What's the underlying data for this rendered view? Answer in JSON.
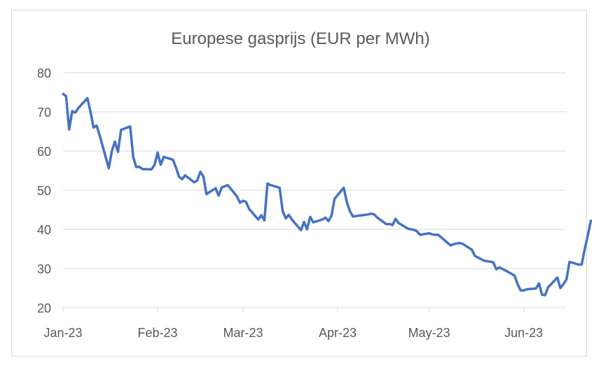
{
  "chart_data": {
    "type": "line",
    "title": "Europese gasprijs (EUR per MWh)",
    "xlabel": "",
    "ylabel": "",
    "ylim": [
      20,
      80
    ],
    "yticks": [
      20,
      30,
      40,
      50,
      60,
      70,
      80
    ],
    "grid": "horizontal",
    "legend": "none",
    "xticks": [
      {
        "label": "Jan-23",
        "date": "2023-01-01"
      },
      {
        "label": "Feb-23",
        "date": "2023-02-01"
      },
      {
        "label": "Mar-23",
        "date": "2023-03-01"
      },
      {
        "label": "Apr-23",
        "date": "2023-04-01"
      },
      {
        "label": "May-23",
        "date": "2023-05-01"
      },
      {
        "label": "Jun-23",
        "date": "2023-06-01"
      }
    ],
    "xlim": [
      "2023-01-01",
      "2023-06-17"
    ],
    "line_color": "#4472C4",
    "grid_color": "#d9d9d9",
    "series": [
      {
        "points": [
          [
            "2023-01-01",
            74.6
          ],
          [
            "2023-01-02",
            74.0
          ],
          [
            "2023-01-03",
            65.5
          ],
          [
            "2023-01-04",
            70.2
          ],
          [
            "2023-01-05",
            69.8
          ],
          [
            "2023-01-06",
            71.0
          ],
          [
            "2023-01-09",
            73.5
          ],
          [
            "2023-01-10",
            70.0
          ],
          [
            "2023-01-11",
            66.0
          ],
          [
            "2023-01-12",
            66.5
          ],
          [
            "2023-01-13",
            64.0
          ],
          [
            "2023-01-16",
            55.6
          ],
          [
            "2023-01-17",
            60.0
          ],
          [
            "2023-01-18",
            62.4
          ],
          [
            "2023-01-19",
            59.8
          ],
          [
            "2023-01-20",
            65.4
          ],
          [
            "2023-01-23",
            66.3
          ],
          [
            "2023-01-24",
            58.5
          ],
          [
            "2023-01-25",
            55.9
          ],
          [
            "2023-01-26",
            56.0
          ],
          [
            "2023-01-27",
            55.4
          ],
          [
            "2023-01-30",
            55.3
          ],
          [
            "2023-01-31",
            56.5
          ],
          [
            "2023-02-01",
            59.6
          ],
          [
            "2023-02-02",
            56.5
          ],
          [
            "2023-02-03",
            58.5
          ],
          [
            "2023-02-06",
            57.8
          ],
          [
            "2023-02-07",
            55.8
          ],
          [
            "2023-02-08",
            53.5
          ],
          [
            "2023-02-09",
            52.8
          ],
          [
            "2023-02-10",
            53.8
          ],
          [
            "2023-02-13",
            52.0
          ],
          [
            "2023-02-14",
            52.5
          ],
          [
            "2023-02-15",
            54.7
          ],
          [
            "2023-02-16",
            53.5
          ],
          [
            "2023-02-17",
            49.0
          ],
          [
            "2023-02-20",
            50.5
          ],
          [
            "2023-02-21",
            48.6
          ],
          [
            "2023-02-22",
            50.7
          ],
          [
            "2023-02-23",
            51.0
          ],
          [
            "2023-02-24",
            51.3
          ],
          [
            "2023-02-27",
            48.4
          ],
          [
            "2023-02-28",
            46.8
          ],
          [
            "2023-03-01",
            47.3
          ],
          [
            "2023-03-02",
            47.0
          ],
          [
            "2023-03-03",
            45.2
          ],
          [
            "2023-03-06",
            42.5
          ],
          [
            "2023-03-07",
            43.6
          ],
          [
            "2023-03-08",
            42.3
          ],
          [
            "2023-03-09",
            51.7
          ],
          [
            "2023-03-10",
            51.3
          ],
          [
            "2023-03-13",
            50.6
          ],
          [
            "2023-03-14",
            44.6
          ],
          [
            "2023-03-15",
            42.8
          ],
          [
            "2023-03-16",
            43.7
          ],
          [
            "2023-03-17",
            42.5
          ],
          [
            "2023-03-20",
            39.8
          ],
          [
            "2023-03-21",
            41.9
          ],
          [
            "2023-03-22",
            40.0
          ],
          [
            "2023-03-23",
            43.2
          ],
          [
            "2023-03-24",
            41.8
          ],
          [
            "2023-03-27",
            42.5
          ],
          [
            "2023-03-28",
            43.0
          ],
          [
            "2023-03-29",
            42.1
          ],
          [
            "2023-03-30",
            43.5
          ],
          [
            "2023-03-31",
            47.8
          ],
          [
            "2023-04-03",
            50.6
          ],
          [
            "2023-04-04",
            47.0
          ],
          [
            "2023-04-05",
            44.7
          ],
          [
            "2023-04-06",
            43.3
          ],
          [
            "2023-04-11",
            43.8
          ],
          [
            "2023-04-12",
            44.0
          ],
          [
            "2023-04-13",
            43.8
          ],
          [
            "2023-04-14",
            43.0
          ],
          [
            "2023-04-17",
            41.3
          ],
          [
            "2023-04-18",
            41.4
          ],
          [
            "2023-04-19",
            41.1
          ],
          [
            "2023-04-20",
            42.7
          ],
          [
            "2023-04-21",
            41.6
          ],
          [
            "2023-04-24",
            40.2
          ],
          [
            "2023-04-25",
            40.0
          ],
          [
            "2023-04-26",
            39.9
          ],
          [
            "2023-04-27",
            39.5
          ],
          [
            "2023-04-28",
            38.6
          ],
          [
            "2023-05-01",
            39.0
          ],
          [
            "2023-05-02",
            38.7
          ],
          [
            "2023-05-03",
            38.6
          ],
          [
            "2023-05-04",
            38.6
          ],
          [
            "2023-05-08",
            35.9
          ],
          [
            "2023-05-09",
            36.2
          ],
          [
            "2023-05-10",
            36.4
          ],
          [
            "2023-05-11",
            36.5
          ],
          [
            "2023-05-12",
            36.3
          ],
          [
            "2023-05-15",
            34.8
          ],
          [
            "2023-05-16",
            33.2
          ],
          [
            "2023-05-17",
            32.8
          ],
          [
            "2023-05-18",
            32.4
          ],
          [
            "2023-05-19",
            32.0
          ],
          [
            "2023-05-22",
            31.6
          ],
          [
            "2023-05-23",
            29.8
          ],
          [
            "2023-05-24",
            30.3
          ],
          [
            "2023-05-25",
            29.9
          ],
          [
            "2023-05-26",
            29.5
          ],
          [
            "2023-05-29",
            28.2
          ],
          [
            "2023-05-30",
            26.0
          ],
          [
            "2023-05-31",
            24.4
          ],
          [
            "2023-06-01",
            24.4
          ],
          [
            "2023-06-02",
            24.7
          ],
          [
            "2023-06-05",
            24.9
          ],
          [
            "2023-06-06",
            26.2
          ],
          [
            "2023-06-07",
            23.3
          ],
          [
            "2023-06-08",
            23.2
          ],
          [
            "2023-06-09",
            25.2
          ],
          [
            "2023-06-12",
            27.7
          ],
          [
            "2023-06-13",
            25.0
          ],
          [
            "2023-06-14",
            26.0
          ],
          [
            "2023-06-15",
            27.2
          ],
          [
            "2023-06-16",
            31.7
          ],
          [
            "2023-06-19",
            31.0
          ],
          [
            "2023-06-20",
            31.0
          ],
          [
            "2023-06-21",
            35.0
          ],
          [
            "2023-06-22",
            38.5
          ],
          [
            "2023-06-23",
            42.2
          ]
        ]
      }
    ]
  }
}
